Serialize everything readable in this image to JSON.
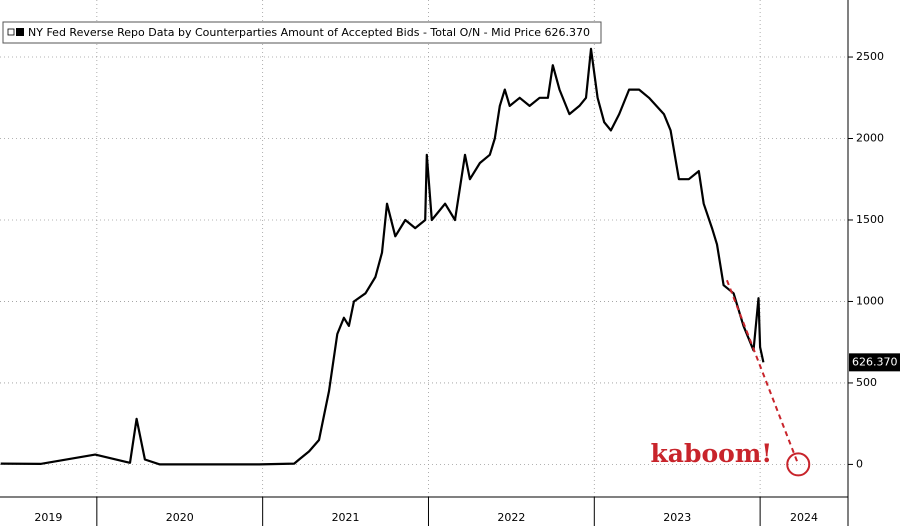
{
  "chart_data": {
    "type": "line",
    "series": [
      {
        "name": "NY Fed Reverse Repo Data by Counterparties Amount of Accepted Bids - Total O/N - Mid Price 626.370",
        "color": "#000000",
        "x": [
          2019.42,
          2019.66,
          2019.99,
          2020.2,
          2020.24,
          2020.29,
          2020.38,
          2020.62,
          2020.98,
          2021.19,
          2021.22,
          2021.28,
          2021.34,
          2021.37,
          2021.4,
          2021.45,
          2021.49,
          2021.52,
          2021.55,
          2021.62,
          2021.68,
          2021.72,
          2021.75,
          2021.8,
          2021.86,
          2021.92,
          2021.98,
          2021.99,
          2022.02,
          2022.1,
          2022.16,
          2022.22,
          2022.25,
          2022.31,
          2022.37,
          2022.4,
          2022.43,
          2022.46,
          2022.49,
          2022.55,
          2022.61,
          2022.67,
          2022.72,
          2022.75,
          2022.79,
          2022.85,
          2022.91,
          2022.95,
          2022.98,
          2023.02,
          2023.06,
          2023.1,
          2023.15,
          2023.21,
          2023.27,
          2023.33,
          2023.42,
          2023.46,
          2023.51,
          2023.57,
          2023.63,
          2023.66,
          2023.71,
          2023.74,
          2023.78,
          2023.84,
          2023.9,
          2023.96,
          2023.99,
          2024.0,
          2024.02
        ],
        "values": [
          5,
          3,
          60,
          10,
          280,
          30,
          0,
          0,
          0,
          5,
          30,
          80,
          150,
          300,
          450,
          800,
          900,
          850,
          1000,
          1050,
          1150,
          1300,
          1600,
          1400,
          1500,
          1450,
          1500,
          1900,
          1500,
          1600,
          1500,
          1900,
          1750,
          1850,
          1900,
          2000,
          2200,
          2300,
          2200,
          2250,
          2200,
          2250,
          2250,
          2450,
          2300,
          2150,
          2200,
          2250,
          2550,
          2250,
          2100,
          2050,
          2150,
          2300,
          2300,
          2250,
          2150,
          2050,
          1750,
          1750,
          1800,
          1600,
          1450,
          1350,
          1100,
          1050,
          850,
          700,
          1020,
          720,
          626.37
        ]
      }
    ],
    "last_price": {
      "value": 626.37,
      "label": "626.370"
    },
    "xlim": [
      2019.416,
      2024.53
    ],
    "xticks": [
      2020,
      2021,
      2022,
      2023,
      2024
    ],
    "year_labels": [
      2019,
      2020,
      2021,
      2022,
      2023,
      2024
    ],
    "ylim": [
      -200,
      2850
    ],
    "yticks": [
      0,
      500,
      1000,
      1500,
      2000,
      2500
    ],
    "grid": true,
    "annotation": {
      "text": "kaboom!",
      "color": "#c8242b",
      "x": [
        2023.8,
        2024.23
      ],
      "values": [
        1130,
        0
      ]
    }
  }
}
